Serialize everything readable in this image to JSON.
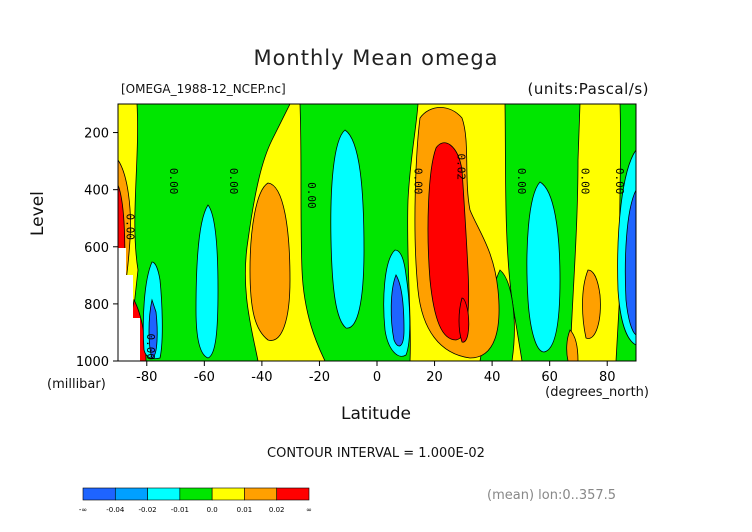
{
  "chart_data": {
    "type": "heatmap",
    "title": "Monthly Mean omega",
    "subtitle_left": "[OMEGA_1988-12_NCEP.nc]",
    "subtitle_right": "(units:Pascal/s)",
    "xlabel": "Latitude",
    "xlabel_units": "(degrees_north)",
    "ylabel": "Level",
    "ylabel_units": "(millibar)",
    "xlim": [
      -90,
      90
    ],
    "ylim": [
      1000,
      100
    ],
    "x_ticks": [
      -80,
      -60,
      -40,
      -20,
      0,
      20,
      40,
      60,
      80
    ],
    "x_tick_labels": [
      "-80",
      "-60",
      "-40",
      "-20",
      "0",
      "20",
      "40",
      "60",
      "80"
    ],
    "y_ticks": [
      200,
      400,
      600,
      800,
      1000
    ],
    "y_tick_labels": [
      "200",
      "400",
      "600",
      "800",
      "1000"
    ],
    "contour_interval_text": "CONTOUR INTERVAL = 1.000E-02",
    "contour_labels": [
      {
        "text": "0.00",
        "lat": -87,
        "lev": 530
      },
      {
        "text": "0.00",
        "lat": -80,
        "lev": 950
      },
      {
        "text": "0.00",
        "lat": -72,
        "lev": 370
      },
      {
        "text": "0.00",
        "lat": -51,
        "lev": 370
      },
      {
        "text": "0.00",
        "lat": -24,
        "lev": 420
      },
      {
        "text": "0.00",
        "lat": 13,
        "lev": 370
      },
      {
        "text": "0.02",
        "lat": 28,
        "lev": 320
      },
      {
        "text": "0.00",
        "lat": 49,
        "lev": 370
      },
      {
        "text": "0.00",
        "lat": 71,
        "lev": 370
      },
      {
        "text": "0.00",
        "lat": 83,
        "lev": 370
      }
    ],
    "colorbar": {
      "colors": [
        "#1e64ff",
        "#00a0ff",
        "#00ffff",
        "#00e600",
        "#ffff00",
        "#ffa000",
        "#ff0000"
      ],
      "labels": [
        "-∞",
        "-0.04",
        "-0.02",
        "-0.01",
        "0.0",
        "0.01",
        "0.02",
        "∞"
      ]
    },
    "footer": "(mean) lon:0..357.5"
  }
}
